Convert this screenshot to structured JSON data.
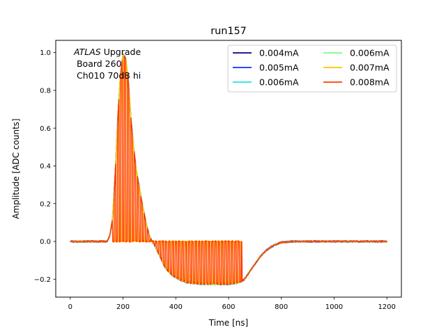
{
  "chart_data": {
    "type": "line",
    "title": "run157",
    "xlabel": "Time [ns]",
    "ylabel": "Amplitude [ADC counts]",
    "xlim": [
      -55,
      1255
    ],
    "ylim": [
      -0.295,
      1.065
    ],
    "xticks": [
      0,
      200,
      400,
      600,
      800,
      1000,
      1200
    ],
    "yticks": [
      -0.2,
      0.0,
      0.2,
      0.4,
      0.6,
      0.8,
      1.0
    ],
    "xtick_labels": [
      "0",
      "200",
      "400",
      "600",
      "800",
      "1000",
      "1200"
    ],
    "ytick_labels": [
      "−0.2",
      "0.0",
      "0.2",
      "0.4",
      "0.6",
      "0.8",
      "1.0"
    ],
    "grid": false,
    "legend_position": "top-right",
    "legend_columns": 2,
    "annotation": {
      "atlas": "ATLAS",
      "upgrade": " Upgrade",
      "line2": " Board 260",
      "line3": " Ch010 70dB hi"
    },
    "pulse_shape": {
      "x": [
        0,
        140,
        150,
        160,
        170,
        180,
        190,
        200,
        210,
        220,
        230,
        240,
        250,
        260,
        270,
        280,
        290,
        300,
        310,
        320,
        330,
        340,
        350,
        360,
        380,
        400,
        420,
        440,
        460,
        500,
        550,
        600,
        630,
        650,
        660,
        670,
        680,
        700,
        720,
        740,
        760,
        780,
        800,
        850,
        900,
        1000,
        1100,
        1200
      ],
      "y": [
        0.0,
        0.0,
        0.03,
        0.12,
        0.35,
        0.65,
        0.88,
        0.99,
        0.97,
        0.85,
        0.65,
        0.5,
        0.38,
        0.3,
        0.22,
        0.15,
        0.08,
        0.03,
        0.0,
        -0.02,
        -0.05,
        -0.08,
        -0.11,
        -0.14,
        -0.17,
        -0.19,
        -0.205,
        -0.215,
        -0.22,
        -0.225,
        -0.225,
        -0.225,
        -0.22,
        -0.21,
        -0.2,
        -0.18,
        -0.16,
        -0.12,
        -0.08,
        -0.05,
        -0.03,
        -0.015,
        -0.005,
        0.0,
        0.0,
        0.0,
        0.0,
        0.0
      ]
    },
    "series": [
      {
        "name": "0.004mA",
        "color": "#00007f",
        "sampling": "continuous",
        "noise": 0.004
      },
      {
        "name": "0.005mA",
        "color": "#0033ff",
        "sampling": "continuous",
        "noise": 0.005
      },
      {
        "name": "0.006mA",
        "color": "#19e6e3",
        "sampling": "continuous",
        "noise": 0.004
      },
      {
        "name": "0.006mA",
        "color": "#7ff97f",
        "sampling": "continuous",
        "noise": 0.004
      },
      {
        "name": "0.007mA",
        "color": "#ffc400",
        "sampling": "gated",
        "noise": 0.003
      },
      {
        "name": "0.008mA",
        "color": "#ff3b00",
        "sampling": "gated",
        "noise": 0.004
      }
    ],
    "gated_sampling": {
      "period_ns": 12.5,
      "on_ns": 6.25,
      "start_ns": 160,
      "stop_ns": 650,
      "offset_ns": {
        "0.007mA": 0,
        "0.008mA": 6.25
      }
    }
  }
}
